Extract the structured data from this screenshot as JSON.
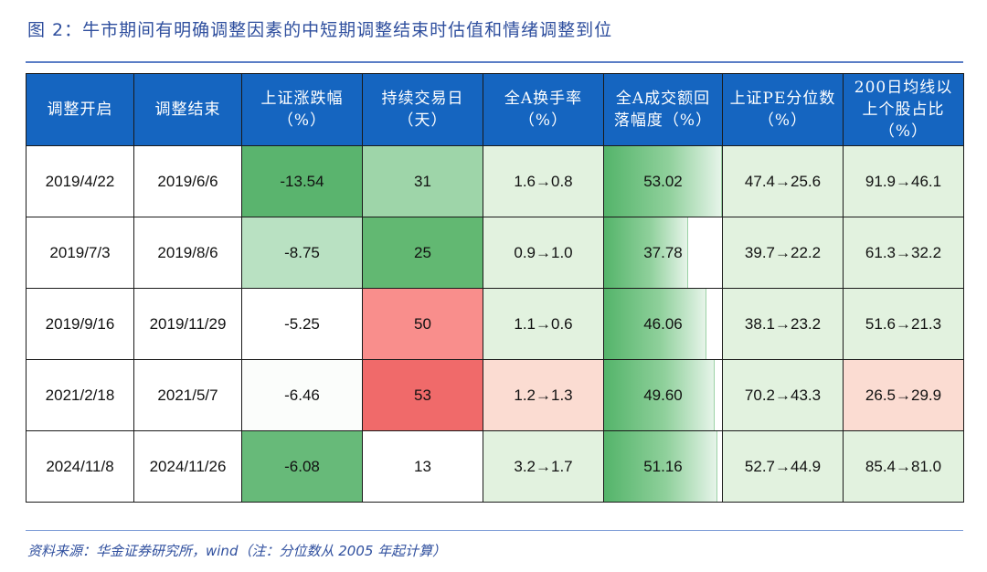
{
  "title": "图 2：牛市期间有明确调整因素的中短期调整结束时估值和情绪调整到位",
  "source": "资料来源：华金证券研究所，wind（注：分位数从 2005 年起计算）",
  "headers": [
    [
      "调整开启"
    ],
    [
      "调整结束"
    ],
    [
      "上证涨跌幅",
      "（%）"
    ],
    [
      "持续交易日",
      "（天）"
    ],
    [
      "全A换手率",
      "（%）"
    ],
    [
      "全A成交额回",
      "落幅度（%）"
    ],
    [
      "上证PE分位数",
      "（%）"
    ],
    [
      "200日均线以",
      "上个股占比",
      "（%）"
    ]
  ],
  "rows": [
    {
      "start": "2019/4/22",
      "end": "2019/6/6",
      "change": "-13.54",
      "days": "31",
      "turnover": "1.6→0.8",
      "vol_drop": "53.02",
      "vol_drop_num": 53.02,
      "pe": "47.4→25.6",
      "ma200": "91.9→46.1"
    },
    {
      "start": "2019/7/3",
      "end": "2019/8/6",
      "change": "-8.75",
      "days": "25",
      "turnover": "0.9→1.0",
      "vol_drop": "37.78",
      "vol_drop_num": 37.78,
      "pe": "39.7→22.2",
      "ma200": "61.3→32.2"
    },
    {
      "start": "2019/9/16",
      "end": "2019/11/29",
      "change": "-5.25",
      "days": "50",
      "turnover": "1.1→0.6",
      "vol_drop": "46.06",
      "vol_drop_num": 46.06,
      "pe": "38.1→23.2",
      "ma200": "51.6→21.3"
    },
    {
      "start": "2021/2/18",
      "end": "2021/5/7",
      "change": "-6.46",
      "days": "53",
      "turnover": "1.2→1.3",
      "vol_drop": "49.60",
      "vol_drop_num": 49.6,
      "pe": "70.2→43.3",
      "ma200": "26.5→29.9"
    },
    {
      "start": "2024/11/8",
      "end": "2024/11/26",
      "change": "-6.08",
      "days": "13",
      "turnover": "3.2→1.7",
      "vol_drop": "51.16",
      "vol_drop_num": 51.16,
      "pe": "52.7→44.9",
      "ma200": "85.4→81.0"
    }
  ],
  "colors": {
    "header_bg": "#1565c0",
    "change": [
      "#5ab46e",
      "#b9e1c2",
      "#ffffff",
      "#fbfdfb",
      "#67ba79"
    ],
    "days": [
      "#9ed5a9",
      "#62b872",
      "#f98e8c",
      "#f06a6a",
      "#ffffff"
    ],
    "turnover": [
      "#e2f2df",
      "#e2f2df",
      "#e2f2df",
      "#fbdcd2",
      "#e2f2df"
    ],
    "pe": [
      "#e2f2df",
      "#e2f2df",
      "#e2f2df",
      "#e2f2df",
      "#e2f2df"
    ],
    "ma200": [
      "#e2f2df",
      "#e2f2df",
      "#e2f2df",
      "#fbdcd2",
      "#e2f2df"
    ],
    "vol_drop_bg": "#ffffff"
  },
  "vol_drop_scale_max": 53.02
}
